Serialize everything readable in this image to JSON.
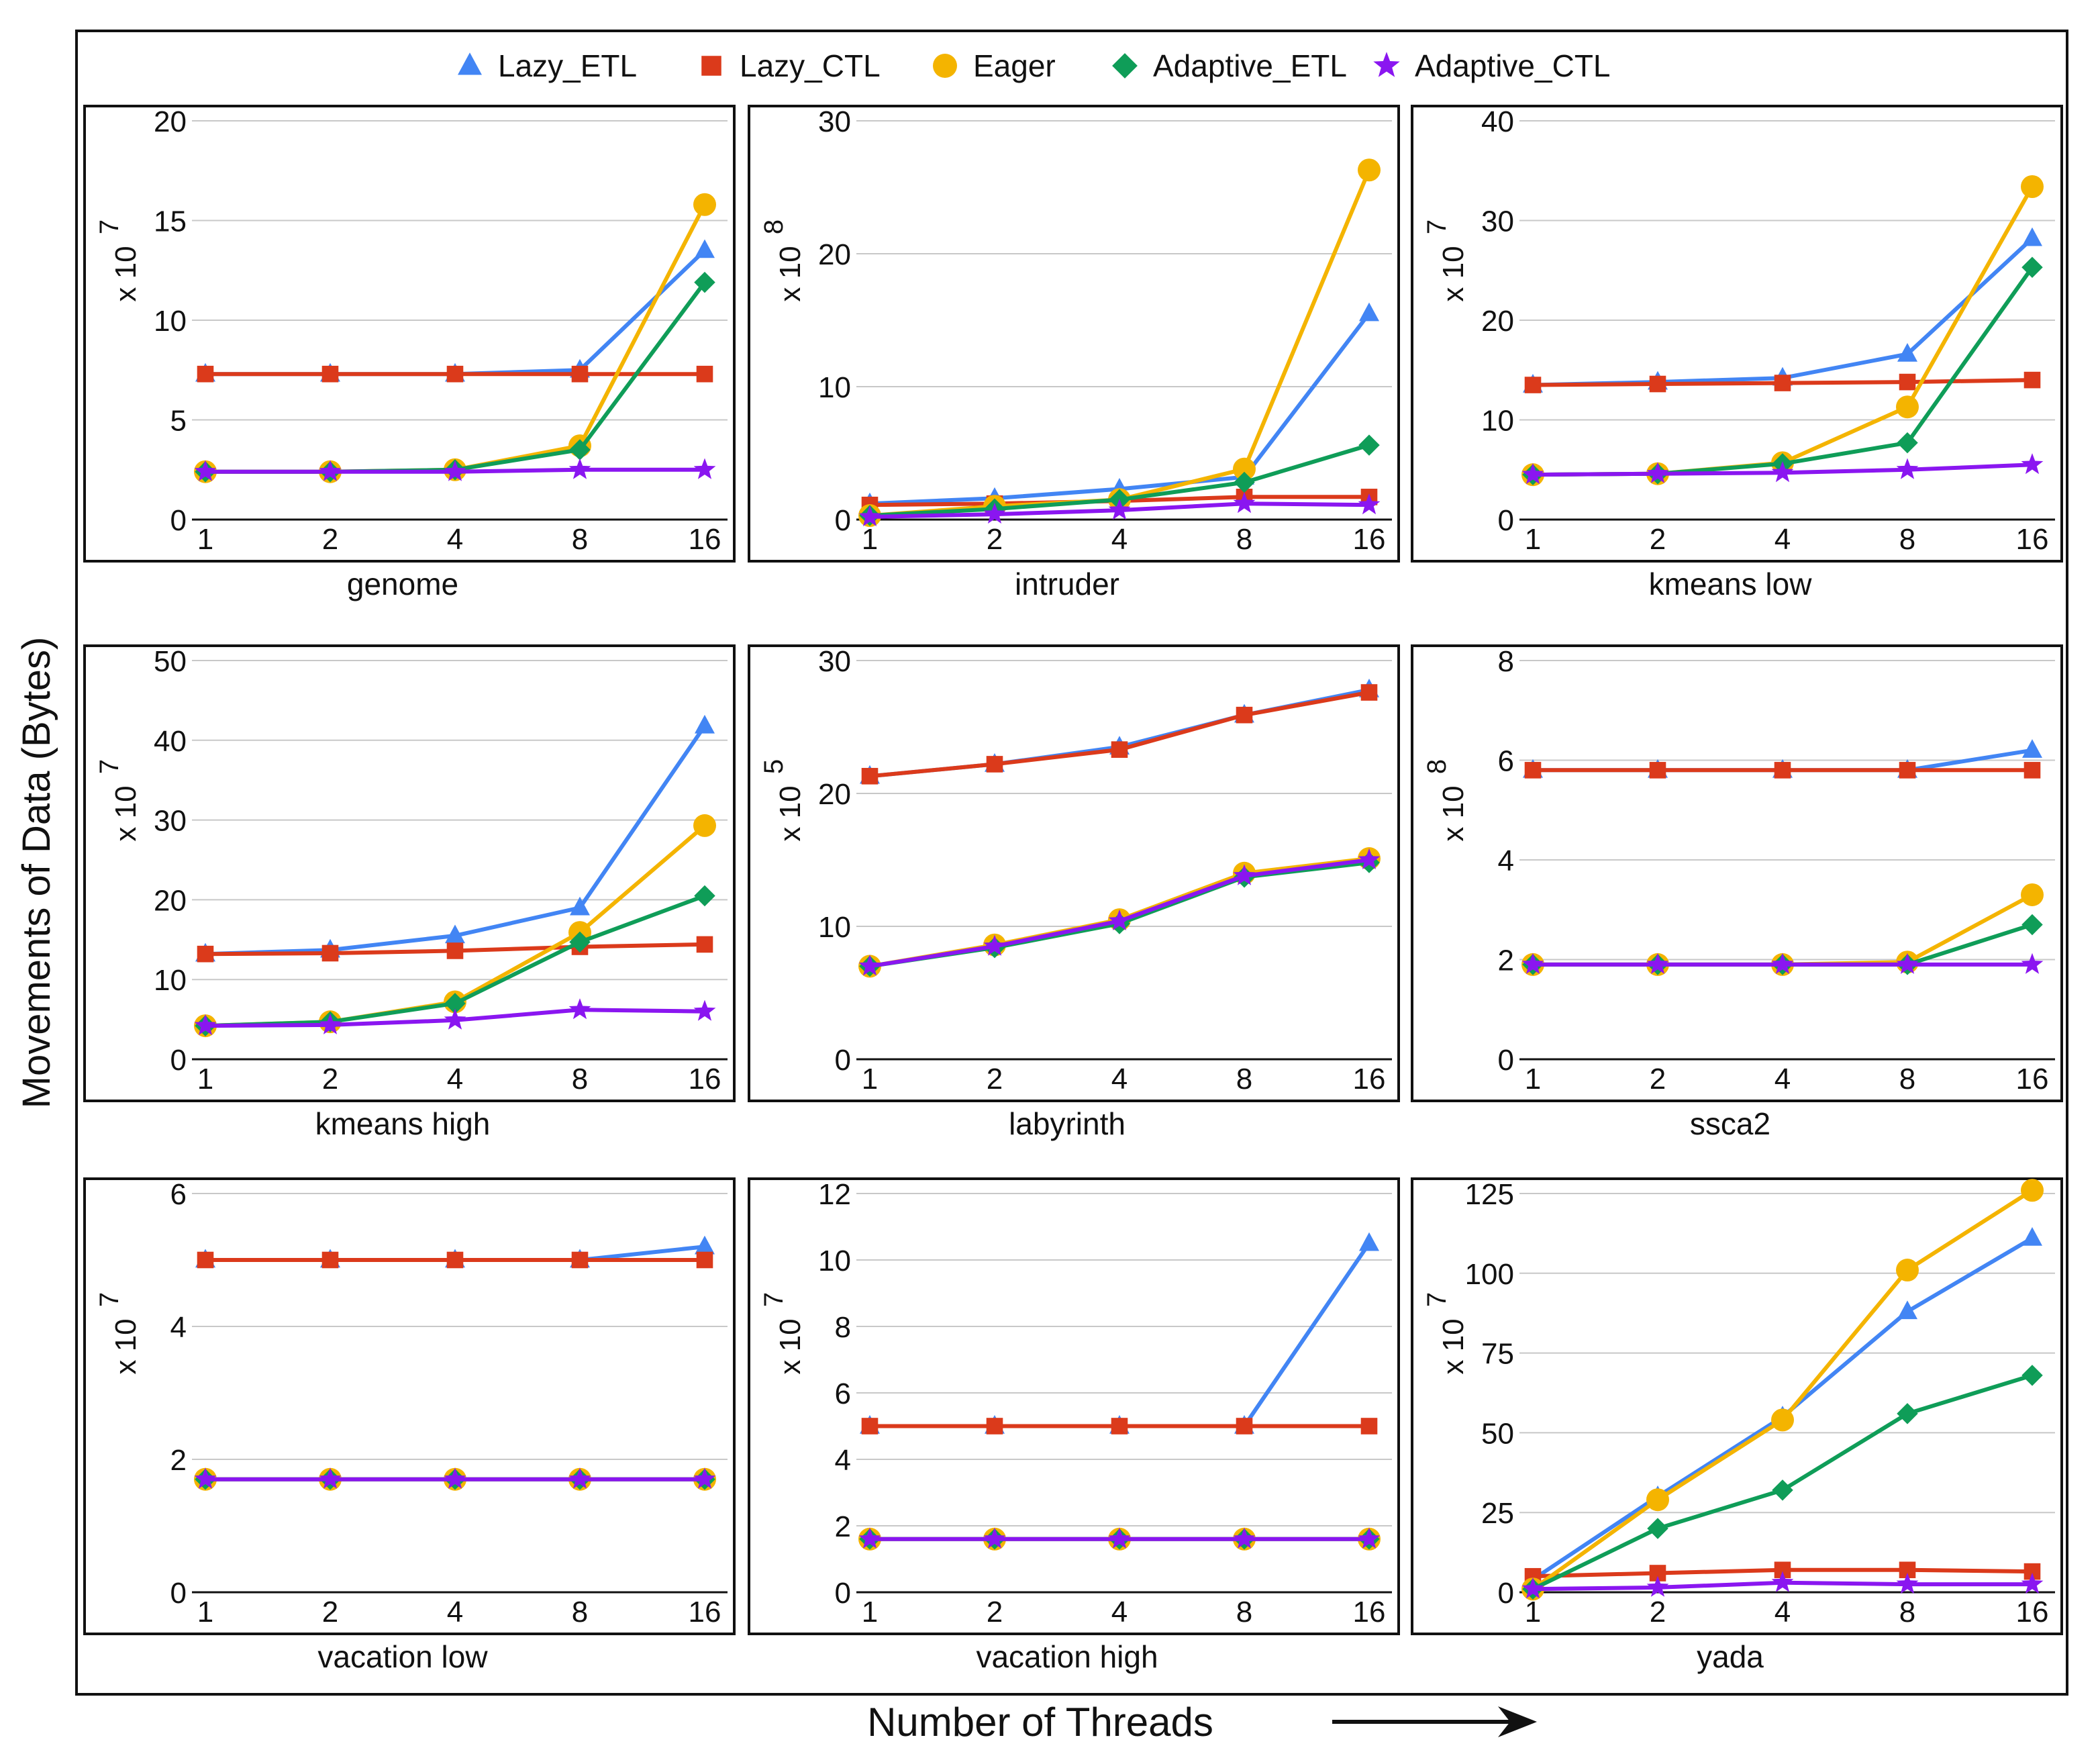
{
  "y_axis_label": "Movements of Data (Bytes)",
  "x_axis_label": "Number of Threads",
  "legend": [
    {
      "key": "lazy_etl",
      "label": "Lazy_ETL",
      "color": "#4285f4",
      "marker": "triangle"
    },
    {
      "key": "lazy_ctl",
      "label": "Lazy_CTL",
      "color": "#db3a1b",
      "marker": "square"
    },
    {
      "key": "eager",
      "label": "Eager",
      "color": "#f4b400",
      "marker": "circle"
    },
    {
      "key": "adaptive_etl",
      "label": "Adaptive_ETL",
      "color": "#0f9d58",
      "marker": "diamond"
    },
    {
      "key": "adaptive_ctl",
      "label": "Adaptive_CTL",
      "color": "#8a16f0",
      "marker": "star"
    }
  ],
  "chart_data": [
    {
      "type": "line",
      "title": "genome",
      "multiplier_base": "x 10",
      "multiplier_exp": "7",
      "categories": [
        "1",
        "2",
        "4",
        "8",
        "16"
      ],
      "ylim": [
        0,
        20
      ],
      "yticks": [
        0,
        5,
        10,
        15,
        20
      ],
      "series": [
        {
          "name": "Lazy_ETL",
          "values": [
            7.3,
            7.3,
            7.3,
            7.5,
            13.5
          ]
        },
        {
          "name": "Lazy_CTL",
          "values": [
            7.3,
            7.3,
            7.3,
            7.3,
            7.3
          ]
        },
        {
          "name": "Eager",
          "values": [
            2.4,
            2.4,
            2.5,
            3.7,
            15.8
          ]
        },
        {
          "name": "Adaptive_ETL",
          "values": [
            2.4,
            2.4,
            2.5,
            3.5,
            11.9
          ]
        },
        {
          "name": "Adaptive_CTL",
          "values": [
            2.4,
            2.4,
            2.4,
            2.5,
            2.5
          ]
        }
      ]
    },
    {
      "type": "line",
      "title": "intruder",
      "multiplier_base": "x 10",
      "multiplier_exp": "8",
      "categories": [
        "1",
        "2",
        "4",
        "8",
        "16"
      ],
      "ylim": [
        0,
        30
      ],
      "yticks": [
        0,
        10,
        20,
        30
      ],
      "series": [
        {
          "name": "Lazy_ETL",
          "values": [
            1.2,
            1.6,
            2.3,
            3.2,
            15.5
          ]
        },
        {
          "name": "Lazy_CTL",
          "values": [
            1.1,
            1.2,
            1.4,
            1.7,
            1.7
          ]
        },
        {
          "name": "Eager",
          "values": [
            0.3,
            1.0,
            1.5,
            3.8,
            26.3
          ]
        },
        {
          "name": "Adaptive_ETL",
          "values": [
            0.3,
            0.8,
            1.5,
            2.8,
            5.6
          ]
        },
        {
          "name": "Adaptive_CTL",
          "values": [
            0.2,
            0.4,
            0.7,
            1.2,
            1.1
          ]
        }
      ]
    },
    {
      "type": "line",
      "title": "kmeans low",
      "multiplier_base": "x 10",
      "multiplier_exp": "7",
      "categories": [
        "1",
        "2",
        "4",
        "8",
        "16"
      ],
      "ylim": [
        0,
        40
      ],
      "yticks": [
        0,
        10,
        20,
        30,
        40
      ],
      "series": [
        {
          "name": "Lazy_ETL",
          "values": [
            13.5,
            13.8,
            14.2,
            16.6,
            28.2
          ]
        },
        {
          "name": "Lazy_CTL",
          "values": [
            13.5,
            13.6,
            13.7,
            13.8,
            14.0
          ]
        },
        {
          "name": "Eager",
          "values": [
            4.5,
            4.6,
            5.7,
            11.3,
            33.4
          ]
        },
        {
          "name": "Adaptive_ETL",
          "values": [
            4.5,
            4.6,
            5.6,
            7.7,
            25.3
          ]
        },
        {
          "name": "Adaptive_CTL",
          "values": [
            4.5,
            4.6,
            4.7,
            5.0,
            5.5
          ]
        }
      ]
    },
    {
      "type": "line",
      "title": "kmeans high",
      "multiplier_base": "x 10",
      "multiplier_exp": "7",
      "categories": [
        "1",
        "2",
        "4",
        "8",
        "16"
      ],
      "ylim": [
        0,
        50
      ],
      "yticks": [
        0,
        10,
        20,
        30,
        40,
        50
      ],
      "series": [
        {
          "name": "Lazy_ETL",
          "values": [
            13.2,
            13.7,
            15.5,
            19.0,
            41.8
          ]
        },
        {
          "name": "Lazy_CTL",
          "values": [
            13.2,
            13.3,
            13.6,
            14.1,
            14.4
          ]
        },
        {
          "name": "Eager",
          "values": [
            4.2,
            4.7,
            7.2,
            15.9,
            29.3
          ]
        },
        {
          "name": "Adaptive_ETL",
          "values": [
            4.2,
            4.7,
            7.0,
            14.7,
            20.5
          ]
        },
        {
          "name": "Adaptive_CTL",
          "values": [
            4.2,
            4.3,
            4.9,
            6.2,
            6.0
          ]
        }
      ]
    },
    {
      "type": "line",
      "title": "labyrinth",
      "multiplier_base": "x 10",
      "multiplier_exp": "5",
      "categories": [
        "1",
        "2",
        "4",
        "8",
        "16"
      ],
      "ylim": [
        0,
        30
      ],
      "yticks": [
        0,
        10,
        20,
        30
      ],
      "series": [
        {
          "name": "Lazy_ETL",
          "values": [
            21.3,
            22.2,
            23.5,
            25.9,
            27.8
          ]
        },
        {
          "name": "Lazy_CTL",
          "values": [
            21.3,
            22.2,
            23.3,
            25.9,
            27.6
          ]
        },
        {
          "name": "Eager",
          "values": [
            7.0,
            8.6,
            10.5,
            14.0,
            15.1
          ]
        },
        {
          "name": "Adaptive_ETL",
          "values": [
            7.0,
            8.4,
            10.2,
            13.7,
            14.8
          ]
        },
        {
          "name": "Adaptive_CTL",
          "values": [
            7.0,
            8.5,
            10.4,
            13.8,
            15.0
          ]
        }
      ]
    },
    {
      "type": "line",
      "title": "ssca2",
      "multiplier_base": "x 10",
      "multiplier_exp": "8",
      "categories": [
        "1",
        "2",
        "4",
        "8",
        "16"
      ],
      "ylim": [
        0,
        8
      ],
      "yticks": [
        0,
        2,
        4,
        6,
        8
      ],
      "series": [
        {
          "name": "Lazy_ETL",
          "values": [
            5.8,
            5.8,
            5.8,
            5.8,
            6.2
          ]
        },
        {
          "name": "Lazy_CTL",
          "values": [
            5.8,
            5.8,
            5.8,
            5.8,
            5.8
          ]
        },
        {
          "name": "Eager",
          "values": [
            1.9,
            1.9,
            1.9,
            1.95,
            3.3
          ]
        },
        {
          "name": "Adaptive_ETL",
          "values": [
            1.9,
            1.9,
            1.9,
            1.9,
            2.7
          ]
        },
        {
          "name": "Adaptive_CTL",
          "values": [
            1.9,
            1.9,
            1.9,
            1.9,
            1.9
          ]
        }
      ]
    },
    {
      "type": "line",
      "title": "vacation low",
      "multiplier_base": "x 10",
      "multiplier_exp": "7",
      "categories": [
        "1",
        "2",
        "4",
        "8",
        "16"
      ],
      "ylim": [
        0,
        6
      ],
      "yticks": [
        0,
        2,
        4,
        6
      ],
      "series": [
        {
          "name": "Lazy_ETL",
          "values": [
            5.0,
            5.0,
            5.0,
            5.0,
            5.2
          ]
        },
        {
          "name": "Lazy_CTL",
          "values": [
            5.0,
            5.0,
            5.0,
            5.0,
            5.0
          ]
        },
        {
          "name": "Eager",
          "values": [
            1.7,
            1.7,
            1.7,
            1.7,
            1.7
          ]
        },
        {
          "name": "Adaptive_ETL",
          "values": [
            1.7,
            1.7,
            1.7,
            1.7,
            1.7
          ]
        },
        {
          "name": "Adaptive_CTL",
          "values": [
            1.7,
            1.7,
            1.7,
            1.7,
            1.7
          ]
        }
      ]
    },
    {
      "type": "line",
      "title": "vacation high",
      "multiplier_base": "x 10",
      "multiplier_exp": "7",
      "categories": [
        "1",
        "2",
        "4",
        "8",
        "16"
      ],
      "ylim": [
        0,
        12
      ],
      "yticks": [
        0,
        2,
        4,
        6,
        8,
        10,
        12
      ],
      "series": [
        {
          "name": "Lazy_ETL",
          "values": [
            5.0,
            5.0,
            5.0,
            5.0,
            10.5
          ]
        },
        {
          "name": "Lazy_CTL",
          "values": [
            5.0,
            5.0,
            5.0,
            5.0,
            5.0
          ]
        },
        {
          "name": "Eager",
          "values": [
            1.6,
            1.6,
            1.6,
            1.6,
            1.6
          ]
        },
        {
          "name": "Adaptive_ETL",
          "values": [
            1.6,
            1.6,
            1.6,
            1.6,
            1.6
          ]
        },
        {
          "name": "Adaptive_CTL",
          "values": [
            1.6,
            1.6,
            1.6,
            1.6,
            1.6
          ]
        }
      ]
    },
    {
      "type": "line",
      "title": "yada",
      "multiplier_base": "x 10",
      "multiplier_exp": "7",
      "categories": [
        "1",
        "2",
        "4",
        "8",
        "16"
      ],
      "ylim": [
        0,
        125
      ],
      "yticks": [
        0,
        25,
        50,
        75,
        100,
        125
      ],
      "series": [
        {
          "name": "Lazy_ETL",
          "values": [
            4,
            30,
            55,
            88,
            111
          ]
        },
        {
          "name": "Lazy_CTL",
          "values": [
            5,
            6,
            7,
            7,
            6.5
          ]
        },
        {
          "name": "Eager",
          "values": [
            1,
            29,
            54,
            101,
            126
          ]
        },
        {
          "name": "Adaptive_ETL",
          "values": [
            1,
            20,
            32,
            56,
            68
          ]
        },
        {
          "name": "Adaptive_CTL",
          "values": [
            1,
            1.5,
            3,
            2.5,
            2.5
          ]
        }
      ]
    }
  ]
}
